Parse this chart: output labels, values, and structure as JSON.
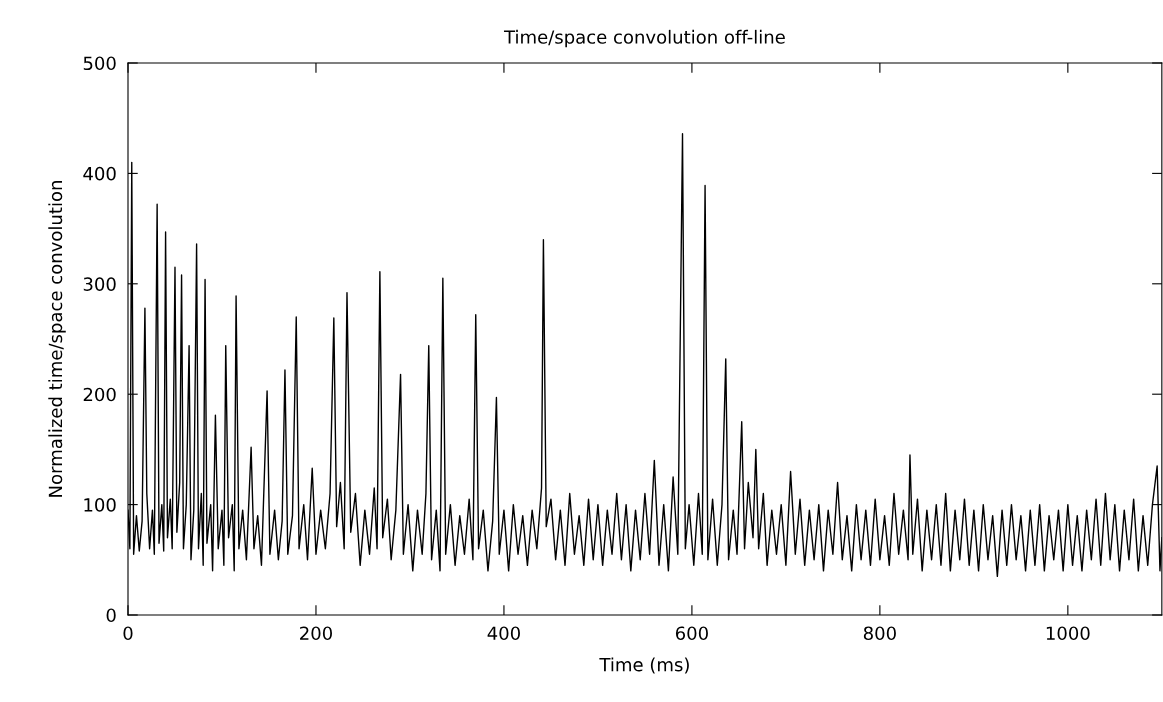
{
  "chart_data": {
    "type": "line",
    "title": "Time/space convolution off-line",
    "xlabel": "Time (ms)",
    "ylabel": "Normalized time/space convolution",
    "xlim": [
      0,
      1100
    ],
    "ylim": [
      0,
      500
    ],
    "xticks": [
      0,
      200,
      400,
      600,
      800,
      1000
    ],
    "yticks": [
      0,
      100,
      200,
      300,
      400,
      500
    ],
    "marker": "none",
    "line_style": "solid",
    "series": [
      {
        "color": "#000000",
        "x": [
          0,
          2,
          4,
          6,
          9,
          12,
          15,
          18,
          20,
          23,
          26,
          28,
          31,
          33,
          36,
          38,
          40,
          42,
          45,
          47,
          50,
          52,
          55,
          57,
          59,
          62,
          65,
          67,
          70,
          73,
          75,
          78,
          80,
          82,
          84,
          88,
          90,
          93,
          96,
          100,
          102,
          104,
          107,
          111,
          113,
          115,
          118,
          122,
          126,
          131,
          134,
          138,
          142,
          148,
          151,
          156,
          160,
          164,
          167,
          170,
          175,
          179,
          182,
          187,
          191,
          196,
          200,
          205,
          210,
          215,
          219,
          222,
          226,
          230,
          233,
          237,
          242,
          247,
          252,
          257,
          262,
          265,
          268,
          271,
          276,
          280,
          285,
          290,
          293,
          298,
          303,
          308,
          313,
          317,
          320,
          323,
          328,
          332,
          335,
          338,
          343,
          348,
          353,
          358,
          363,
          367,
          370,
          373,
          378,
          383,
          388,
          392,
          395,
          400,
          405,
          410,
          415,
          420,
          425,
          430,
          435,
          440,
          442,
          445,
          450,
          455,
          460,
          465,
          470,
          475,
          480,
          485,
          490,
          495,
          500,
          505,
          510,
          515,
          520,
          525,
          530,
          535,
          540,
          545,
          550,
          555,
          560,
          565,
          570,
          575,
          580,
          585,
          590,
          593,
          597,
          602,
          607,
          611,
          614,
          617,
          622,
          627,
          632,
          636,
          639,
          644,
          648,
          653,
          656,
          660,
          665,
          668,
          671,
          676,
          680,
          685,
          690,
          695,
          700,
          705,
          710,
          715,
          720,
          725,
          730,
          735,
          740,
          745,
          750,
          755,
          760,
          765,
          770,
          775,
          780,
          785,
          790,
          795,
          800,
          805,
          810,
          815,
          820,
          825,
          830,
          832,
          835,
          840,
          845,
          850,
          855,
          860,
          865,
          870,
          875,
          880,
          885,
          890,
          895,
          900,
          905,
          910,
          915,
          920,
          925,
          930,
          935,
          940,
          945,
          950,
          955,
          960,
          965,
          970,
          975,
          980,
          985,
          990,
          995,
          1000,
          1005,
          1010,
          1015,
          1020,
          1025,
          1030,
          1035,
          1040,
          1045,
          1050,
          1055,
          1060,
          1065,
          1070,
          1075,
          1080,
          1085,
          1090,
          1095,
          1098,
          1100
        ],
        "values": [
          95,
          60,
          410,
          55,
          90,
          58,
          85,
          278,
          110,
          60,
          95,
          55,
          372,
          65,
          100,
          58,
          347,
          70,
          105,
          60,
          315,
          75,
          120,
          308,
          60,
          100,
          244,
          50,
          95,
          336,
          60,
          110,
          45,
          304,
          65,
          100,
          40,
          181,
          60,
          95,
          45,
          244,
          70,
          100,
          40,
          289,
          60,
          95,
          50,
          152,
          60,
          90,
          45,
          203,
          55,
          95,
          50,
          85,
          222,
          55,
          90,
          270,
          60,
          100,
          50,
          133,
          55,
          95,
          60,
          110,
          269,
          80,
          120,
          60,
          292,
          75,
          110,
          45,
          95,
          55,
          115,
          60,
          311,
          70,
          105,
          50,
          95,
          218,
          55,
          100,
          40,
          95,
          55,
          110,
          244,
          50,
          95,
          40,
          305,
          55,
          100,
          45,
          90,
          55,
          105,
          50,
          272,
          60,
          95,
          40,
          85,
          197,
          55,
          95,
          40,
          100,
          55,
          90,
          45,
          95,
          60,
          115,
          340,
          80,
          105,
          50,
          95,
          45,
          110,
          55,
          90,
          45,
          105,
          50,
          100,
          45,
          95,
          55,
          110,
          50,
          100,
          40,
          95,
          50,
          110,
          55,
          140,
          45,
          100,
          40,
          125,
          55,
          436,
          60,
          100,
          45,
          110,
          55,
          389,
          50,
          105,
          45,
          100,
          232,
          50,
          95,
          55,
          175,
          60,
          120,
          70,
          150,
          60,
          110,
          45,
          95,
          55,
          100,
          45,
          130,
          55,
          105,
          45,
          95,
          50,
          100,
          40,
          95,
          55,
          120,
          50,
          90,
          40,
          100,
          50,
          95,
          45,
          105,
          50,
          90,
          45,
          110,
          55,
          95,
          50,
          145,
          55,
          105,
          40,
          95,
          50,
          100,
          45,
          110,
          40,
          95,
          50,
          105,
          45,
          95,
          40,
          100,
          50,
          90,
          35,
          95,
          45,
          100,
          50,
          90,
          40,
          95,
          45,
          100,
          40,
          90,
          50,
          95,
          40,
          100,
          45,
          90,
          40,
          95,
          50,
          105,
          45,
          110,
          50,
          100,
          40,
          95,
          50,
          105,
          40,
          90,
          45,
          100,
          135,
          40,
          70
        ]
      }
    ]
  }
}
